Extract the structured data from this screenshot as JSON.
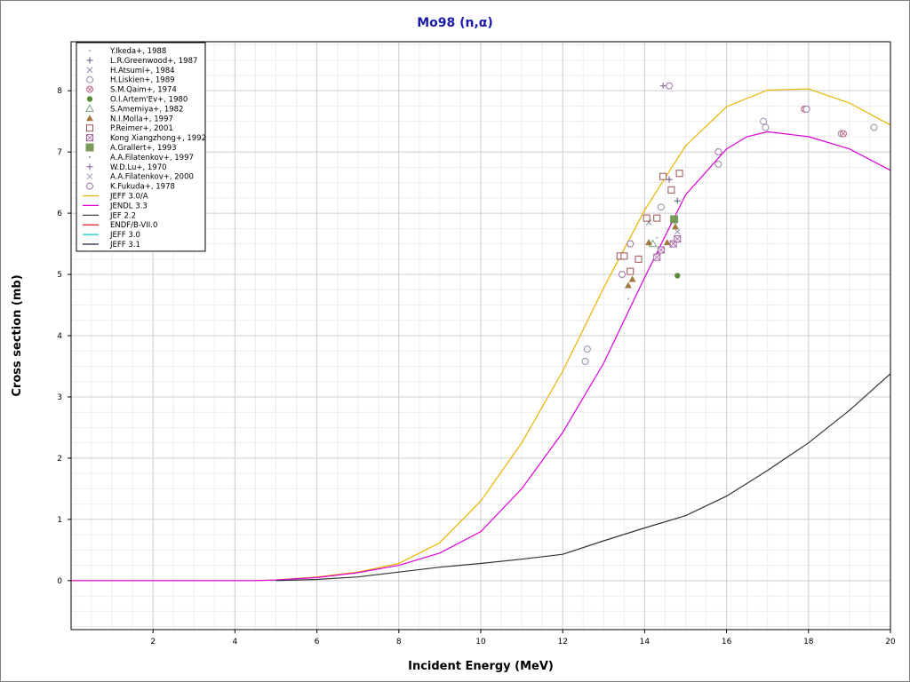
{
  "chart_data": {
    "type": "scatter",
    "title": "Mo98 (n,α)",
    "xlabel": "Incident Energy (MeV)",
    "ylabel": "Cross section (mb)",
    "xlim": [
      0,
      20
    ],
    "ylim": [
      -0.8,
      8.8
    ],
    "xticks": [
      2,
      4,
      6,
      8,
      10,
      12,
      14,
      16,
      18,
      20
    ],
    "yticks": [
      0,
      1,
      2,
      3,
      4,
      5,
      6,
      7,
      8
    ],
    "grid": true,
    "legend_position": "top-left",
    "series": [
      {
        "name": "Y.Ikeda+, 1988",
        "kind": "points",
        "marker": "dot",
        "color": "#b8b8c8",
        "points": [
          [
            13.6,
            4.6
          ],
          [
            14.3,
            5.6
          ]
        ]
      },
      {
        "name": "L.R.Greenwood+, 1987",
        "kind": "points",
        "marker": "plus",
        "color": "#666688",
        "points": [
          [
            14.6,
            6.55
          ],
          [
            14.8,
            6.2
          ]
        ]
      },
      {
        "name": "H.Atsumi+, 1984",
        "kind": "points",
        "marker": "x",
        "color": "#8888aa",
        "points": [
          [
            14.1,
            5.85
          ]
        ]
      },
      {
        "name": "H.Liskien+, 1989",
        "kind": "points",
        "marker": "circle",
        "color": "#9a8aa8",
        "points": [
          [
            12.6,
            3.78
          ],
          [
            12.55,
            3.58
          ],
          [
            14.4,
            6.1
          ],
          [
            15.8,
            6.8
          ],
          [
            16.9,
            7.5
          ],
          [
            16.95,
            7.4
          ],
          [
            18.8,
            7.3
          ],
          [
            19.6,
            7.4
          ]
        ]
      },
      {
        "name": "S.M.Qaim+, 1974",
        "kind": "points",
        "marker": "circle-x",
        "color": "#c06080",
        "points": [
          [
            17.9,
            7.7
          ],
          [
            18.85,
            7.3
          ]
        ]
      },
      {
        "name": "O.I.Artem'Ev+, 1980",
        "kind": "points",
        "marker": "filled-circle",
        "color": "#5a8a3a",
        "points": [
          [
            14.8,
            4.98
          ]
        ]
      },
      {
        "name": "S.Amemiya+, 1982",
        "kind": "points",
        "marker": "triangle",
        "color": "#7aa07a",
        "points": [
          [
            14.2,
            5.5
          ]
        ]
      },
      {
        "name": "N.I.Molla+, 1997",
        "kind": "points",
        "marker": "filled-triangle",
        "color": "#a07840",
        "points": [
          [
            13.6,
            4.82
          ],
          [
            13.7,
            4.92
          ],
          [
            14.1,
            5.52
          ],
          [
            14.55,
            5.52
          ],
          [
            14.75,
            5.78
          ]
        ]
      },
      {
        "name": "P.Reimer+, 2001",
        "kind": "points",
        "marker": "square",
        "color": "#a05050",
        "points": [
          [
            13.4,
            5.3
          ],
          [
            13.5,
            5.3
          ],
          [
            13.65,
            5.05
          ],
          [
            13.85,
            5.25
          ],
          [
            14.05,
            5.92
          ],
          [
            14.3,
            5.92
          ],
          [
            14.45,
            6.6
          ],
          [
            14.65,
            6.38
          ],
          [
            14.85,
            6.65
          ]
        ]
      },
      {
        "name": "Kong Xiangzhong+, 1992",
        "kind": "points",
        "marker": "square-x",
        "color": "#a060a0",
        "points": [
          [
            14.3,
            5.28
          ],
          [
            14.4,
            5.4
          ],
          [
            14.7,
            5.5
          ],
          [
            14.8,
            5.58
          ]
        ]
      },
      {
        "name": "A.Grallert+, 1993",
        "kind": "points",
        "marker": "filled-square",
        "color": "#7a9a5a",
        "points": [
          [
            14.72,
            5.9
          ]
        ]
      },
      {
        "name": "A.A.Filatenkov+, 1997",
        "kind": "points",
        "marker": "dot",
        "color": "#a0a0b8",
        "points": [
          [
            13.5,
            5.0
          ]
        ]
      },
      {
        "name": "W.D.Lu+, 1970",
        "kind": "points",
        "marker": "plus",
        "color": "#8a6a9a",
        "points": [
          [
            14.45,
            8.08
          ],
          [
            14.6,
            6.55
          ]
        ]
      },
      {
        "name": "A.A.Filatenkov+, 2000",
        "kind": "points",
        "marker": "x",
        "color": "#9898b8",
        "points": [
          [
            14.8,
            5.7
          ]
        ]
      },
      {
        "name": "K.Fukuda+, 1978",
        "kind": "points",
        "marker": "hexagon",
        "color": "#a070a8",
        "points": [
          [
            14.6,
            8.08
          ],
          [
            13.45,
            5.0
          ],
          [
            13.65,
            5.5
          ],
          [
            15.8,
            7.0
          ],
          [
            17.95,
            7.7
          ]
        ]
      },
      {
        "name": "JEFF 3.0/A",
        "kind": "line",
        "color": "#e8b400",
        "points": [
          [
            0,
            0
          ],
          [
            4.5,
            0
          ],
          [
            5,
            0.01
          ],
          [
            6,
            0.06
          ],
          [
            7,
            0.14
          ],
          [
            8,
            0.28
          ],
          [
            9,
            0.62
          ],
          [
            10,
            1.3
          ],
          [
            11,
            2.25
          ],
          [
            12,
            3.42
          ],
          [
            13,
            4.78
          ],
          [
            14,
            6.05
          ],
          [
            15,
            7.1
          ],
          [
            16,
            7.74
          ],
          [
            17,
            8.01
          ],
          [
            18,
            8.03
          ],
          [
            19,
            7.8
          ],
          [
            20,
            7.44
          ]
        ]
      },
      {
        "name": "JENDL 3.3",
        "kind": "line",
        "color": "#dd00dd",
        "points": [
          [
            0,
            0
          ],
          [
            4.5,
            0
          ],
          [
            5,
            0.01
          ],
          [
            6,
            0.05
          ],
          [
            7,
            0.13
          ],
          [
            8,
            0.25
          ],
          [
            9,
            0.45
          ],
          [
            10,
            0.8
          ],
          [
            11,
            1.5
          ],
          [
            12,
            2.42
          ],
          [
            13,
            3.55
          ],
          [
            14,
            4.95
          ],
          [
            15,
            6.3
          ],
          [
            16,
            7.05
          ],
          [
            16.5,
            7.25
          ],
          [
            17,
            7.33
          ],
          [
            18,
            7.25
          ],
          [
            19,
            7.05
          ],
          [
            20,
            6.7
          ]
        ]
      },
      {
        "name": "JEF 2.2",
        "kind": "line",
        "color": "#333333",
        "points": [
          [
            5,
            0
          ],
          [
            6,
            0.02
          ],
          [
            7,
            0.06
          ],
          [
            8,
            0.14
          ],
          [
            9,
            0.22
          ],
          [
            10,
            0.28
          ],
          [
            11,
            0.35
          ],
          [
            12,
            0.43
          ],
          [
            13,
            0.65
          ],
          [
            14,
            0.86
          ],
          [
            15,
            1.06
          ],
          [
            16,
            1.38
          ],
          [
            17,
            1.8
          ],
          [
            18,
            2.25
          ],
          [
            19,
            2.78
          ],
          [
            20,
            3.38
          ]
        ]
      },
      {
        "name": "ENDF/B-VII.0",
        "kind": "line",
        "color": "#ee0000",
        "points": []
      },
      {
        "name": "JEFF 3.0",
        "kind": "line",
        "color": "#00cccc",
        "points": []
      },
      {
        "name": "JEFF 3.1",
        "kind": "line",
        "color": "#1a1a40",
        "points": []
      }
    ]
  }
}
